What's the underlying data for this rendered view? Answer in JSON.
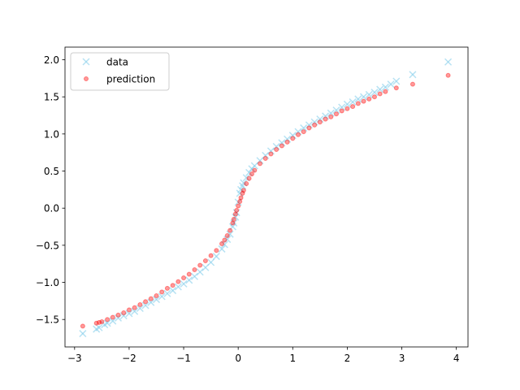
{
  "chart_data": {
    "type": "scatter",
    "title": "",
    "xlabel": "",
    "ylabel": "",
    "xlim": [
      -3.176,
      4.214
    ],
    "ylim": [
      -1.87,
      2.17
    ],
    "x_ticks": [
      -3,
      -2,
      -1,
      0,
      1,
      2,
      3,
      4
    ],
    "y_ticks": [
      -1.5,
      -1.0,
      -0.5,
      0.0,
      0.5,
      1.0,
      1.5,
      2.0
    ],
    "x_tick_labels": [
      "−3",
      "−2",
      "−1",
      "0",
      "1",
      "2",
      "3",
      "4"
    ],
    "y_tick_labels": [
      "−1.5",
      "−1.0",
      "−0.5",
      "0.0",
      "0.5",
      "1.0",
      "1.5",
      "2.0"
    ],
    "grid": false,
    "legend_position": "top-left",
    "series": [
      {
        "name": "data",
        "marker": "x",
        "color": "#87ceeb",
        "alpha": 0.6,
        "x": [
          -2.85,
          -2.6,
          -2.55,
          -2.45,
          -2.4,
          -2.3,
          -2.2,
          -2.1,
          -2.0,
          -1.9,
          -1.8,
          -1.7,
          -1.6,
          -1.5,
          -1.4,
          -1.3,
          -1.2,
          -1.1,
          -1.0,
          -0.9,
          -0.8,
          -0.7,
          -0.6,
          -0.5,
          -0.4,
          -0.3,
          -0.25,
          -0.2,
          -0.15,
          -0.1,
          -0.08,
          -0.05,
          -0.03,
          0.0,
          0.03,
          0.05,
          0.08,
          0.1,
          0.15,
          0.2,
          0.25,
          0.3,
          0.4,
          0.5,
          0.6,
          0.7,
          0.8,
          0.9,
          1.0,
          1.1,
          1.2,
          1.3,
          1.4,
          1.5,
          1.6,
          1.7,
          1.8,
          1.9,
          2.0,
          2.1,
          2.2,
          2.3,
          2.4,
          2.5,
          2.6,
          2.7,
          2.8,
          2.9,
          3.2,
          3.85
        ],
        "y": [
          -1.69,
          -1.63,
          -1.61,
          -1.57,
          -1.55,
          -1.52,
          -1.48,
          -1.45,
          -1.42,
          -1.39,
          -1.35,
          -1.31,
          -1.27,
          -1.23,
          -1.19,
          -1.15,
          -1.11,
          -1.06,
          -1.02,
          -0.97,
          -0.92,
          -0.86,
          -0.8,
          -0.73,
          -0.65,
          -0.55,
          -0.49,
          -0.42,
          -0.35,
          -0.25,
          -0.2,
          -0.12,
          -0.06,
          0.08,
          0.2,
          0.25,
          0.3,
          0.34,
          0.41,
          0.48,
          0.53,
          0.57,
          0.64,
          0.71,
          0.77,
          0.83,
          0.88,
          0.93,
          0.98,
          1.03,
          1.08,
          1.12,
          1.16,
          1.2,
          1.24,
          1.28,
          1.32,
          1.36,
          1.4,
          1.43,
          1.47,
          1.5,
          1.53,
          1.56,
          1.6,
          1.63,
          1.67,
          1.71,
          1.8,
          1.97
        ]
      },
      {
        "name": "prediction",
        "marker": "o",
        "color": "#ff0000",
        "alpha": 0.4,
        "x": [
          -2.85,
          -2.6,
          -2.55,
          -2.5,
          -2.4,
          -2.3,
          -2.2,
          -2.1,
          -2.0,
          -1.9,
          -1.8,
          -1.7,
          -1.6,
          -1.5,
          -1.4,
          -1.3,
          -1.2,
          -1.1,
          -1.0,
          -0.9,
          -0.8,
          -0.7,
          -0.6,
          -0.5,
          -0.4,
          -0.3,
          -0.25,
          -0.2,
          -0.15,
          -0.1,
          -0.08,
          -0.05,
          -0.03,
          0.0,
          0.03,
          0.05,
          0.08,
          0.1,
          0.15,
          0.2,
          0.25,
          0.3,
          0.4,
          0.5,
          0.6,
          0.7,
          0.8,
          0.9,
          1.0,
          1.1,
          1.2,
          1.3,
          1.4,
          1.5,
          1.6,
          1.7,
          1.8,
          1.9,
          2.0,
          2.1,
          2.2,
          2.3,
          2.4,
          2.5,
          2.6,
          2.7,
          2.9,
          3.2,
          3.85
        ],
        "y": [
          -1.59,
          -1.55,
          -1.54,
          -1.53,
          -1.5,
          -1.47,
          -1.44,
          -1.41,
          -1.37,
          -1.34,
          -1.3,
          -1.26,
          -1.22,
          -1.18,
          -1.13,
          -1.08,
          -1.04,
          -0.99,
          -0.94,
          -0.89,
          -0.83,
          -0.77,
          -0.71,
          -0.64,
          -0.57,
          -0.48,
          -0.43,
          -0.37,
          -0.3,
          -0.2,
          -0.15,
          -0.08,
          -0.03,
          0.03,
          0.09,
          0.14,
          0.2,
          0.24,
          0.33,
          0.4,
          0.46,
          0.51,
          0.6,
          0.67,
          0.73,
          0.79,
          0.84,
          0.89,
          0.94,
          0.99,
          1.03,
          1.08,
          1.12,
          1.16,
          1.2,
          1.23,
          1.27,
          1.31,
          1.34,
          1.37,
          1.41,
          1.44,
          1.47,
          1.5,
          1.54,
          1.57,
          1.62,
          1.67,
          1.79
        ]
      }
    ]
  }
}
